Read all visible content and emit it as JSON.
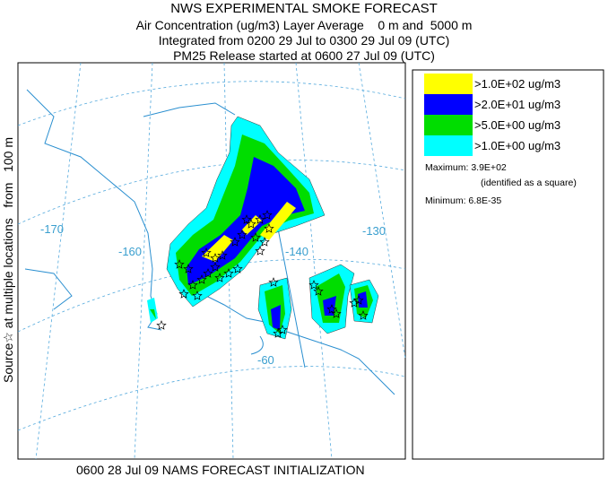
{
  "header": {
    "title": "NWS EXPERIMENTAL SMOKE FORECAST",
    "lines": [
      "Air Concentration (ug/m3) Layer Average    0 m and  5000 m",
      "Integrated from 0200 29 Jul to 0300 29 Jul 09 (UTC)",
      "PM25 Release started at 0600 27 Jul 09 (UTC)"
    ]
  },
  "side_label": "Source☆ at multiple locations   from   100 m",
  "legend": {
    "items": [
      {
        "label": ">1.0E+02 ug/m3",
        "color": "#ffff00"
      },
      {
        "label": ">2.0E+01 ug/m3",
        "color": "#0000ff"
      },
      {
        "label": ">5.0E+00 ug/m3",
        "color": "#00dd00"
      },
      {
        "label": ">1.0E+00 ug/m3",
        "color": "#00ffff"
      }
    ],
    "maximum": "Maximum: 3.9E+02",
    "maximum_note": "(identified as a square)",
    "minimum": "Minimum: 6.8E-35"
  },
  "map": {
    "labels": [
      "-170",
      "-160",
      "-140",
      "-130",
      "-60"
    ]
  },
  "footer": "0600 28 Jul 09 NAMS FORECAST INITIALIZATION"
}
